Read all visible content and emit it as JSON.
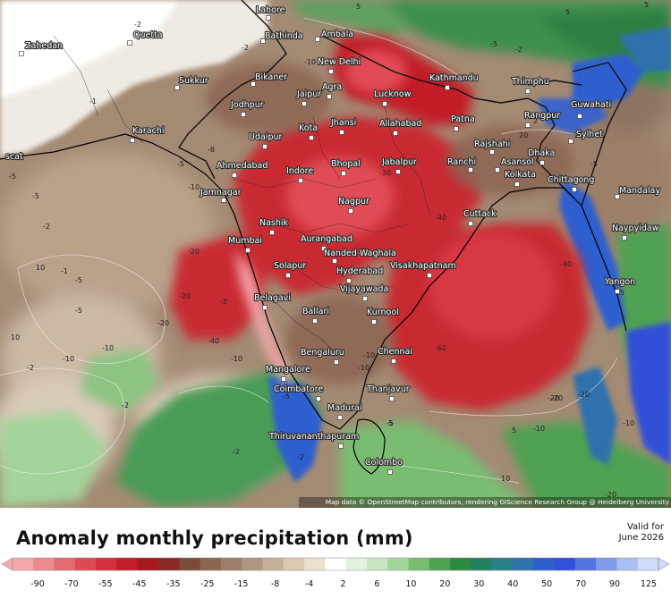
{
  "title": "Anomaly monthly precipitation (mm)",
  "valid_label": "Valid for",
  "valid_date": "June 2026",
  "attribution": "Map data © OpenStreetMap contributors, rendering GIScience Research Group @ Heidelberg University",
  "legend": {
    "tick_labels": [
      "-90",
      "-70",
      "-55",
      "-45",
      "-35",
      "-25",
      "-15",
      "-8",
      "-4",
      "2",
      "6",
      "10",
      "20",
      "30",
      "40",
      "50",
      "70",
      "90",
      "125"
    ],
    "colors": [
      "#f3a8ac",
      "#ec8a90",
      "#e46a72",
      "#dc4c55",
      "#d2303a",
      "#c21d28",
      "#a7181f",
      "#8a2a22",
      "#7d4a3e",
      "#8c6553",
      "#9d7e6a",
      "#b09682",
      "#c7b09a",
      "#ddc8b2",
      "#ede0cf",
      "#ffffff",
      "#e4f1de",
      "#c9e6c2",
      "#a3d49b",
      "#79bd72",
      "#4fa152",
      "#2f8a41",
      "#24805e",
      "#2a7f8b",
      "#2e71ad",
      "#2f5fcf",
      "#3250d8",
      "#5575e0",
      "#7f9cea",
      "#a8bff2",
      "#cddcf8"
    ]
  },
  "cities": [
    {
      "name": "Lahore"
    },
    {
      "name": "Bathinda"
    },
    {
      "name": "Ambala"
    },
    {
      "name": "Zahedan"
    },
    {
      "name": "Quetta"
    },
    {
      "name": "New Delhi"
    },
    {
      "name": "Sukkur"
    },
    {
      "name": "Bikaner"
    },
    {
      "name": "Agra"
    },
    {
      "name": "Lucknow"
    },
    {
      "name": "Kathmandu"
    },
    {
      "name": "Thimphu"
    },
    {
      "name": "Jaipur"
    },
    {
      "name": "Jodhpur"
    },
    {
      "name": "Guwahati"
    },
    {
      "name": "Rangpur"
    },
    {
      "name": "Karachi"
    },
    {
      "name": "Jhansi"
    },
    {
      "name": "Allahabad"
    },
    {
      "name": "Patna"
    },
    {
      "name": "Kota"
    },
    {
      "name": "Sylhet"
    },
    {
      "name": "Udaipur"
    },
    {
      "name": "Rajshahi"
    },
    {
      "name": "scat"
    },
    {
      "name": "Ahmedabad"
    },
    {
      "name": "Bhopal"
    },
    {
      "name": "Jabalpur"
    },
    {
      "name": "Ranchi"
    },
    {
      "name": "Asansol"
    },
    {
      "name": "Dhaka"
    },
    {
      "name": "Indore"
    },
    {
      "name": "Kolkata"
    },
    {
      "name": "Jamnagar"
    },
    {
      "name": "Chittagong"
    },
    {
      "name": "Mandalay"
    },
    {
      "name": "Nagpur"
    },
    {
      "name": "Cuttack"
    },
    {
      "name": "Nashik"
    },
    {
      "name": "Aurangabad"
    },
    {
      "name": "Naypyidaw"
    },
    {
      "name": "Mumbai"
    },
    {
      "name": "Nanded-Waghala"
    },
    {
      "name": "Solapur"
    },
    {
      "name": "Visakhapatnam"
    },
    {
      "name": "Hyderabad"
    },
    {
      "name": "Yangon"
    },
    {
      "name": "Vijayawada"
    },
    {
      "name": "Belagavi"
    },
    {
      "name": "Ballari"
    },
    {
      "name": "Kurnool"
    },
    {
      "name": "Bengaluru"
    },
    {
      "name": "Chennai"
    },
    {
      "name": "Mangalore"
    },
    {
      "name": "Coimbatore"
    },
    {
      "name": "Thanjavur"
    },
    {
      "name": "Madurai"
    },
    {
      "name": "Thiruvananthapuram"
    },
    {
      "name": "Colombo"
    }
  ],
  "contour_labels": [
    "5",
    "-5",
    "-2",
    "5",
    "-10",
    "-2",
    "-1",
    "-5",
    "-5",
    "-8",
    "-5",
    "-10",
    "-2",
    "-1",
    "-20",
    "-5",
    "-10",
    "10",
    "-2",
    "-20",
    "-5",
    "-40",
    "-20",
    "-40",
    "-30",
    "-20",
    "-10",
    "-5",
    "-10",
    "-60",
    "-40",
    "-20",
    "-10",
    "-5",
    "-2",
    "20",
    "2",
    "5",
    "-20",
    "-10",
    "-2",
    "5",
    "10",
    "-5",
    "-5",
    "-20",
    "-2",
    "-10",
    "5",
    "-10",
    "-20",
    "-5",
    "10",
    "20",
    "-2"
  ]
}
